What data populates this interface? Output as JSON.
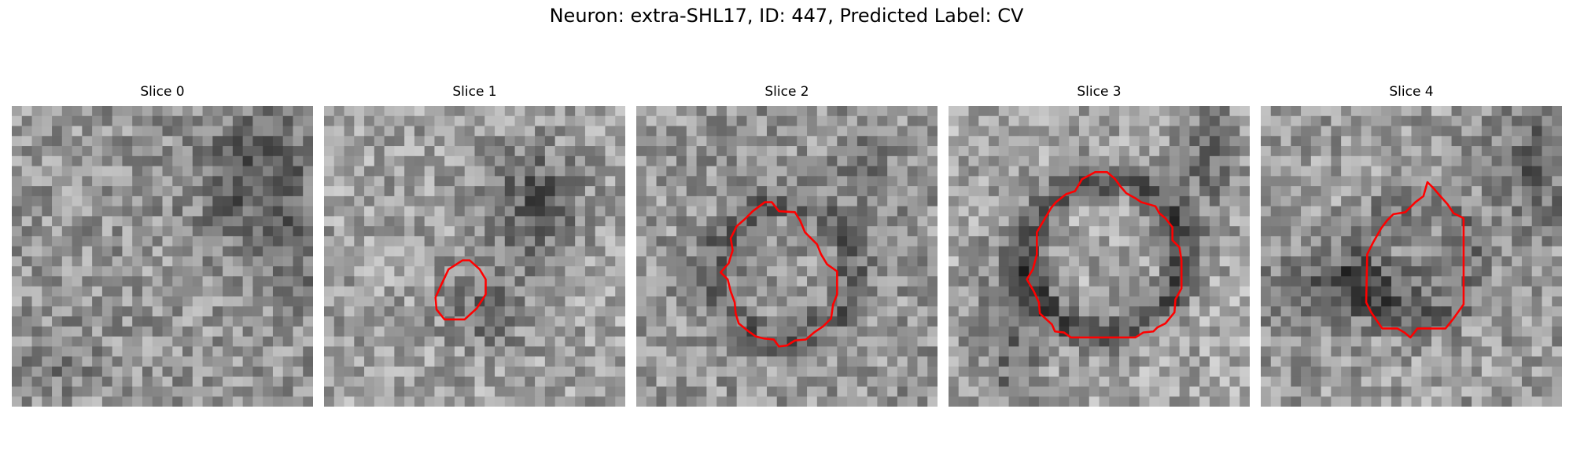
{
  "figure": {
    "suptitle": "Neuron: extra-SHL17, ID: 447, Predicted Label: CV"
  },
  "panels": [
    {
      "title": "Slice 0",
      "has_contour": false
    },
    {
      "title": "Slice 1",
      "has_contour": true
    },
    {
      "title": "Slice 2",
      "has_contour": true
    },
    {
      "title": "Slice 3",
      "has_contour": true
    },
    {
      "title": "Slice 4",
      "has_contour": true
    }
  ],
  "colors": {
    "contour": "#ff0000",
    "background": "#ffffff",
    "text": "#000000"
  },
  "colormap": "gray"
}
